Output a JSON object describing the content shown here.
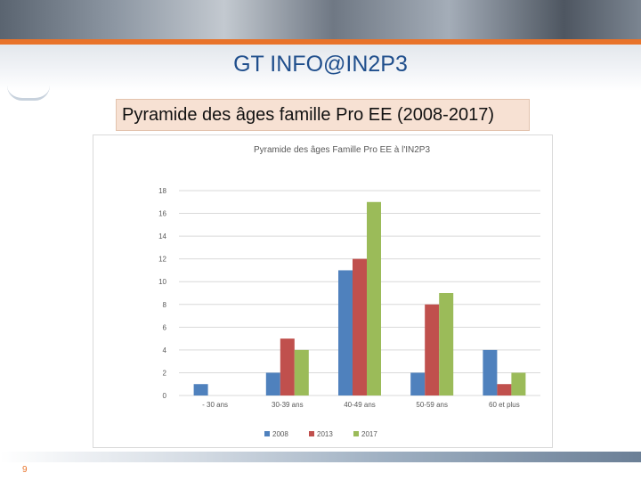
{
  "slide": {
    "title": "GT INFO@IN2P3",
    "subtitle": "Pyramide des âges famille Pro EE (2008-2017)",
    "page_number": "9"
  },
  "colors": {
    "title": "#1f4e8c",
    "accent": "#e8732a",
    "subtitle_bg": "#f7e1d3"
  },
  "chart_data": {
    "type": "bar",
    "title": "Pyramide des âges Famille Pro EE à l'IN2P3",
    "categories": [
      "- 30 ans",
      "30-39 ans",
      "40-49 ans",
      "50-59 ans",
      "60 et plus"
    ],
    "series": [
      {
        "name": "2008",
        "color": "#4f81bd",
        "values": [
          1,
          2,
          11,
          2,
          4
        ]
      },
      {
        "name": "2013",
        "color": "#c0504d",
        "values": [
          0,
          5,
          12,
          8,
          1
        ]
      },
      {
        "name": "2017",
        "color": "#9bbb59",
        "values": [
          0,
          4,
          17,
          9,
          2
        ]
      }
    ],
    "ylim": [
      0,
      18
    ],
    "yticks": [
      0,
      2,
      4,
      6,
      8,
      10,
      12,
      14,
      16,
      18
    ],
    "grid": true,
    "legend": "bottom"
  }
}
